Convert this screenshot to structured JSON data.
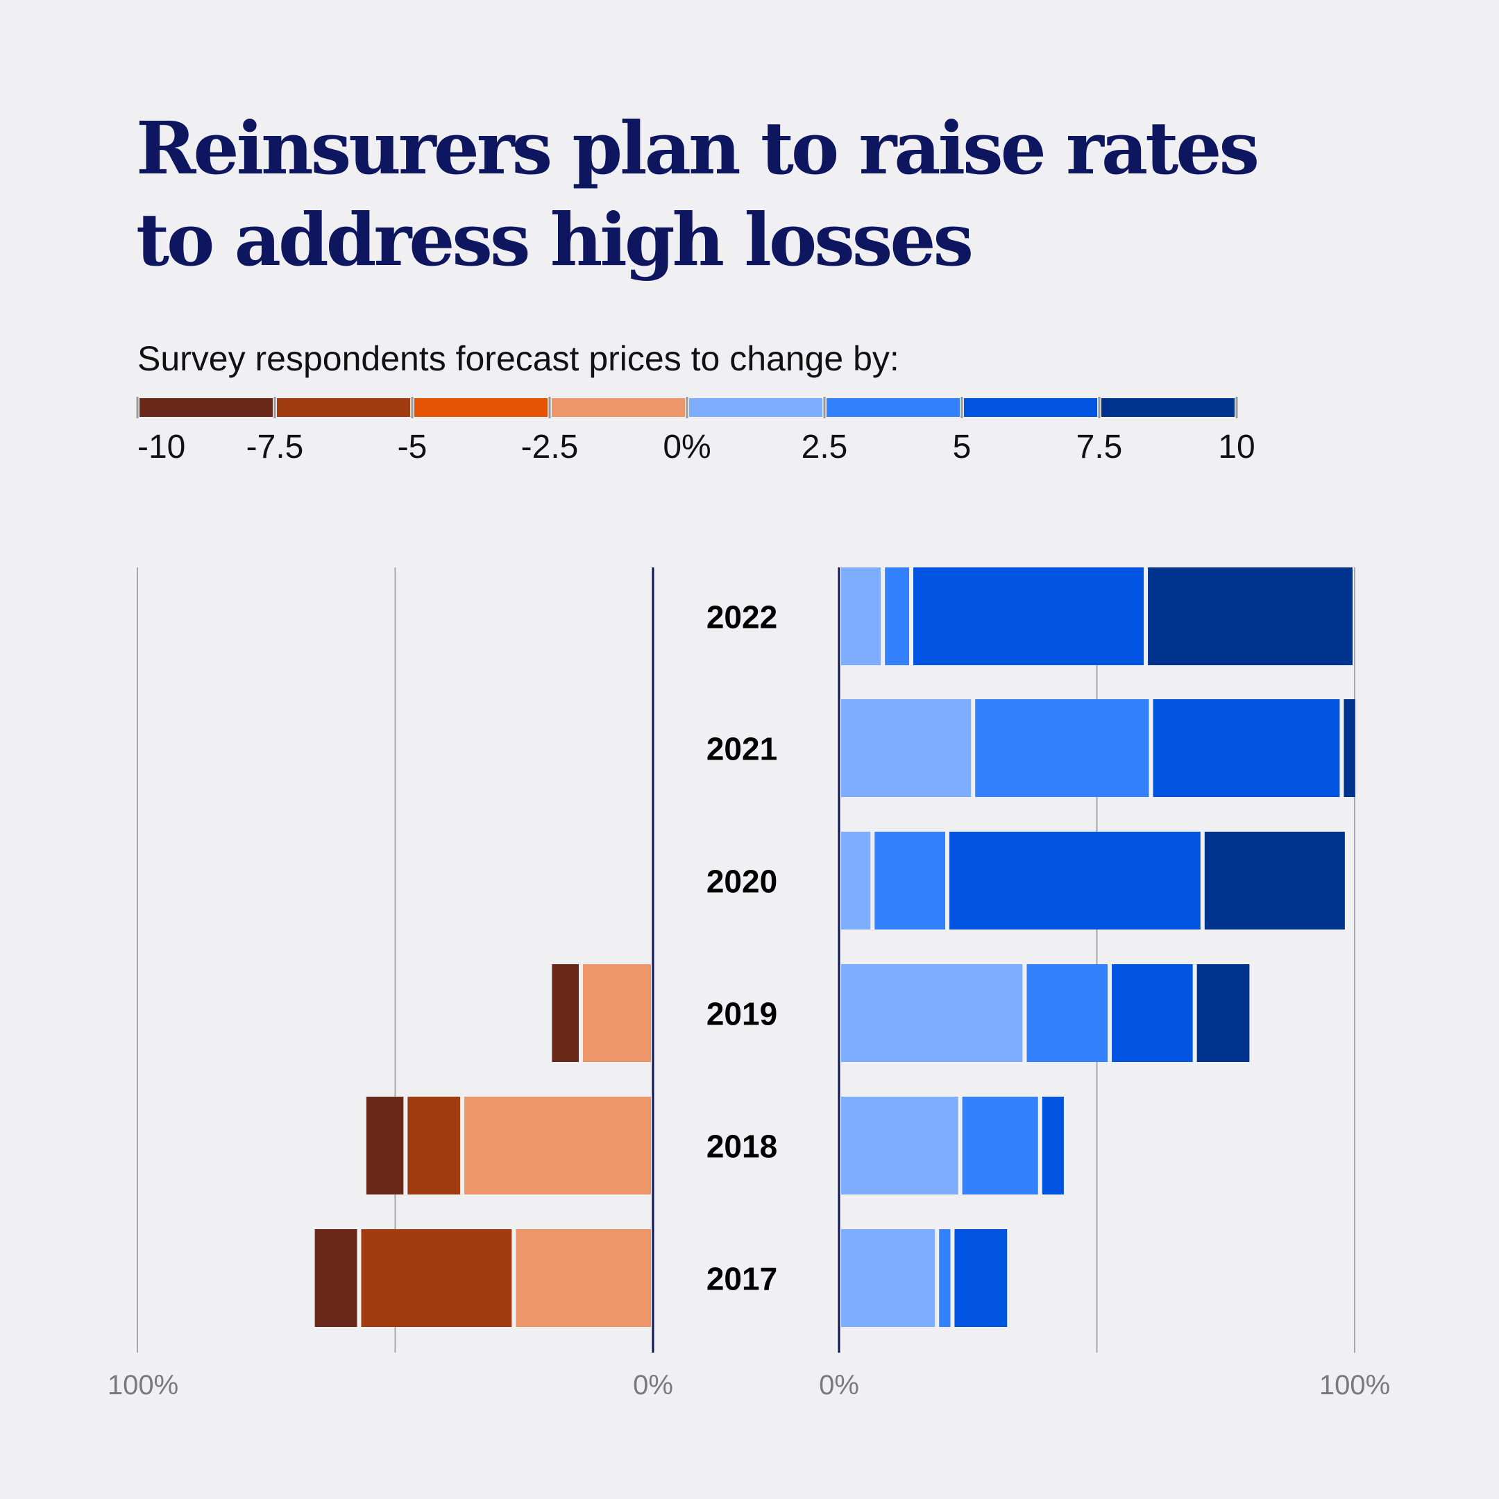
{
  "title": "Reinsurers plan to raise rates to address high losses",
  "legend": {
    "caption": "Survey respondents forecast prices to change by:",
    "ticks": [
      "-10",
      "-7.5",
      "-5",
      "-2.5",
      "0%",
      "2.5",
      "5",
      "7.5",
      "10"
    ],
    "colors": [
      "#6a2818",
      "#a13c11",
      "#e55304",
      "#ec966a",
      "#7fadfe",
      "#3481fe",
      "#0154e2",
      "#00338e"
    ]
  },
  "chart_data": {
    "type": "bar",
    "orientation": "horizontal-diverging-stacked",
    "title": "Reinsurers plan to raise rates to address high losses",
    "categories": [
      "2022",
      "2021",
      "2020",
      "2019",
      "2018",
      "2017"
    ],
    "axis_labels": {
      "left_max": "100%",
      "left_zero": "0%",
      "right_zero": "0%",
      "right_max": "100%"
    },
    "xlim": [
      0,
      100
    ],
    "decrease_series": [
      {
        "name": "-10 to -7.5",
        "color": "#6a2818",
        "values": [
          0,
          0,
          0,
          6,
          8,
          9
        ]
      },
      {
        "name": "-7.5 to -5",
        "color": "#a13c11",
        "values": [
          0,
          0,
          0,
          0,
          11,
          30
        ]
      },
      {
        "name": "-5 to -2.5",
        "color": "#e55304",
        "values": [
          0,
          0,
          0,
          0,
          0,
          0
        ]
      },
      {
        "name": "-2.5 to 0%",
        "color": "#ec966a",
        "values": [
          0,
          0,
          0,
          14,
          37,
          27
        ]
      }
    ],
    "increase_series": [
      {
        "name": "0% to 2.5",
        "color": "#7fadfe",
        "values": [
          8.5,
          26,
          6.5,
          36,
          23.5,
          19
        ]
      },
      {
        "name": "2.5 to 5",
        "color": "#3481fe",
        "values": [
          5.5,
          34.5,
          14.5,
          16.5,
          15.5,
          3
        ]
      },
      {
        "name": "5 to 7.5",
        "color": "#0154e2",
        "values": [
          45.5,
          37,
          49.5,
          16.5,
          5,
          11
        ]
      },
      {
        "name": "7.5 to 10",
        "color": "#00338e",
        "values": [
          40.5,
          3,
          28,
          11,
          0,
          0
        ]
      }
    ]
  }
}
